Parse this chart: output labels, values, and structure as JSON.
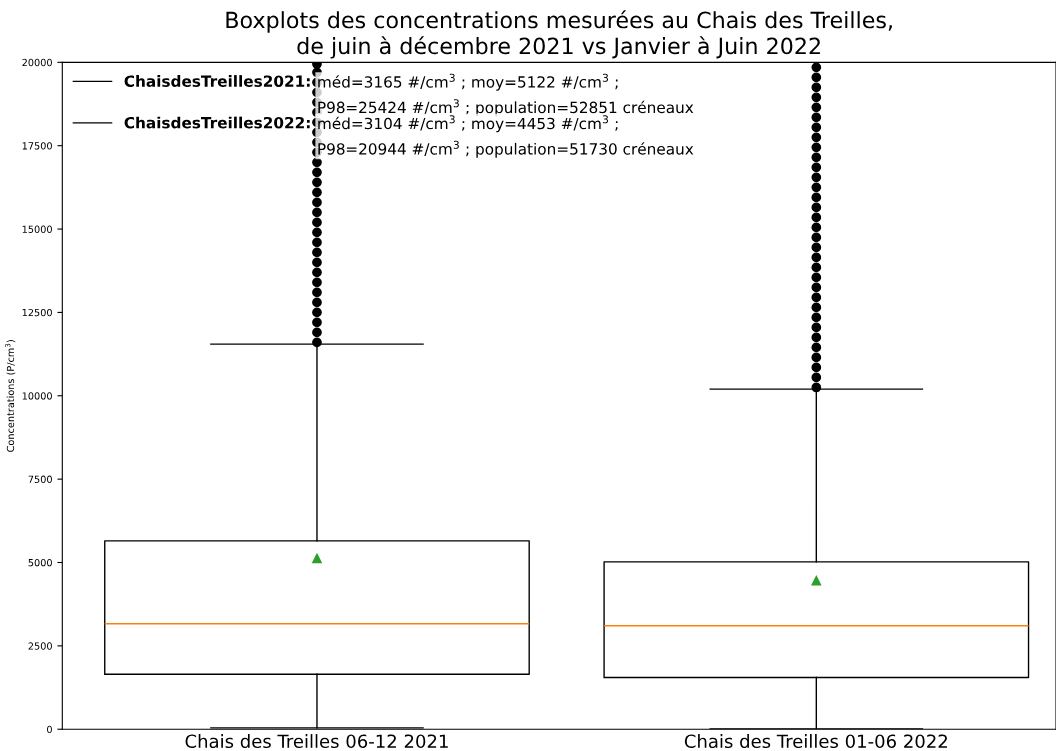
{
  "chart_data": {
    "type": "box",
    "title": "Boxplots des concentrations mesurées au Chais des Treilles,\nde juin à décembre 2021 vs Janvier à Juin 2022",
    "ylabel": "Concentrations (P/cm$^{3}$)",
    "categories": [
      "Chais des Treilles 06-12 2021",
      "Chais des Treilles 01-06 2022"
    ],
    "ylim": [
      0,
      20000
    ],
    "yticks": [
      0,
      2500,
      5000,
      7500,
      10000,
      12500,
      15000,
      17500,
      20000
    ],
    "grid": false,
    "legend": "top left",
    "annotations": [
      "méd=3165 #/cm$^{3}$ ; moy=5122 #/cm$^{3}$ ;\nP98=25424 #/cm$^{3}$ ; population=52851 créneaux",
      "méd=3104 #/cm$^{3}$ ; moy=4453 #/cm$^{3}$ ;\nP98=20944 #/cm$^{3}$ ; population=51730 créneaux"
    ],
    "series": [
      {
        "name": "ChaisdesTreilles2021:",
        "color": "#000000",
        "boxes": [
          {
            "low": 40,
            "q1": 1650,
            "median": 3165,
            "q3": 5650,
            "high": 11550,
            "mean": 5122,
            "outliers": [
              11600,
              11900,
              12200,
              12500,
              12800,
              13100,
              13400,
              13700,
              14000,
              14300,
              14600,
              14900,
              15200,
              15500,
              15800,
              16100,
              16400,
              16700,
              17000,
              17300,
              17600,
              17900,
              18200,
              18500,
              18800,
              19100,
              19400,
              19700,
              19950
            ]
          },
          null
        ]
      },
      {
        "name": "ChaisdesTreilles2022:",
        "color": "#000000",
        "boxes": [
          null,
          {
            "low": 10,
            "q1": 1550,
            "median": 3104,
            "q3": 5020,
            "high": 10200,
            "mean": 4453,
            "outliers": [
              10250,
              10550,
              10850,
              11150,
              11450,
              11750,
              12050,
              12350,
              12650,
              12950,
              13250,
              13550,
              13850,
              14150,
              14450,
              14750,
              15050,
              15350,
              15650,
              15950,
              16250,
              16550,
              16850,
              17150,
              17450,
              17750,
              18050,
              18350,
              18650,
              18950,
              19250,
              19550,
              19850
            ]
          }
        ]
      }
    ]
  }
}
